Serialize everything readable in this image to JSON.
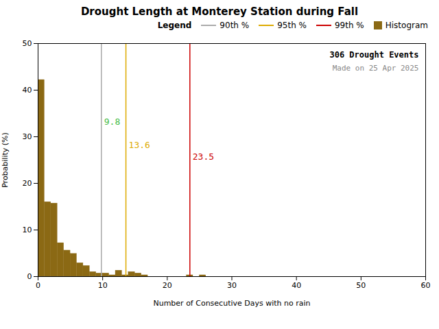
{
  "chart_data": {
    "type": "histogram",
    "title": "Drought Length at Monterey Station during Fall",
    "x_label": "Number of Consecutive Days with no rain",
    "y_label": "Probability (%)",
    "name": "Histogram",
    "color": "#8B6914",
    "bins": [
      0,
      1,
      2,
      3,
      4,
      5,
      6,
      7,
      8,
      9,
      10,
      11,
      12,
      13,
      14,
      15,
      16,
      17,
      18,
      19,
      20,
      21,
      22,
      23,
      24,
      25,
      26,
      27,
      28,
      29,
      30,
      31,
      32,
      33,
      34,
      35,
      36,
      37,
      38,
      39,
      40,
      41,
      42,
      43,
      44,
      45,
      46,
      47,
      48,
      49,
      50,
      51,
      52,
      53,
      54,
      55,
      56,
      57,
      58,
      59,
      60
    ],
    "values": [
      42.2,
      16.0,
      15.7,
      7.2,
      5.6,
      4.9,
      2.9,
      2.3,
      1.0,
      0.7,
      0.7,
      0.3,
      1.3,
      0.3,
      1.0,
      0.7,
      0.3,
      0.0,
      0.0,
      0.0,
      0.0,
      0.0,
      0.0,
      0.3,
      0.0,
      0.3,
      0.0,
      0.0,
      0.0,
      0.0,
      0.0,
      0.0,
      0.0,
      0.0,
      0.0,
      0.0,
      0.0,
      0.0,
      0.0,
      0.0,
      0.0,
      0.0,
      0.0,
      0.0,
      0.0,
      0.0,
      0.0,
      0.0,
      0.0,
      0.0,
      0.0,
      0.0,
      0.0,
      0.0,
      0.0,
      0.0,
      0.0,
      0.0,
      0.0,
      0.0
    ],
    "lines": [
      {
        "name": "90th %",
        "x": 9.8,
        "label": "9.8",
        "color": "#aaaaaa",
        "label_color": "#44bb44"
      },
      {
        "name": "95th %",
        "x": 13.6,
        "label": "13.6",
        "color": "#ddaa00",
        "label_color": "#ddaa00"
      },
      {
        "name": "99th %",
        "x": 23.5,
        "label": "23.5",
        "color": "#cc0000",
        "label_color": "#cc0000"
      }
    ],
    "annotations": [
      "306 Drought Events",
      "Made on 25 Apr 2025"
    ],
    "legend": "upper right",
    "legend_title": "Legend",
    "xlim": [
      0,
      60
    ],
    "ylim": [
      0,
      50
    ],
    "xticks": [
      0,
      10,
      20,
      30,
      40,
      50,
      60
    ],
    "yticks": [
      0,
      10,
      20,
      30,
      40,
      50
    ],
    "grid": false
  }
}
